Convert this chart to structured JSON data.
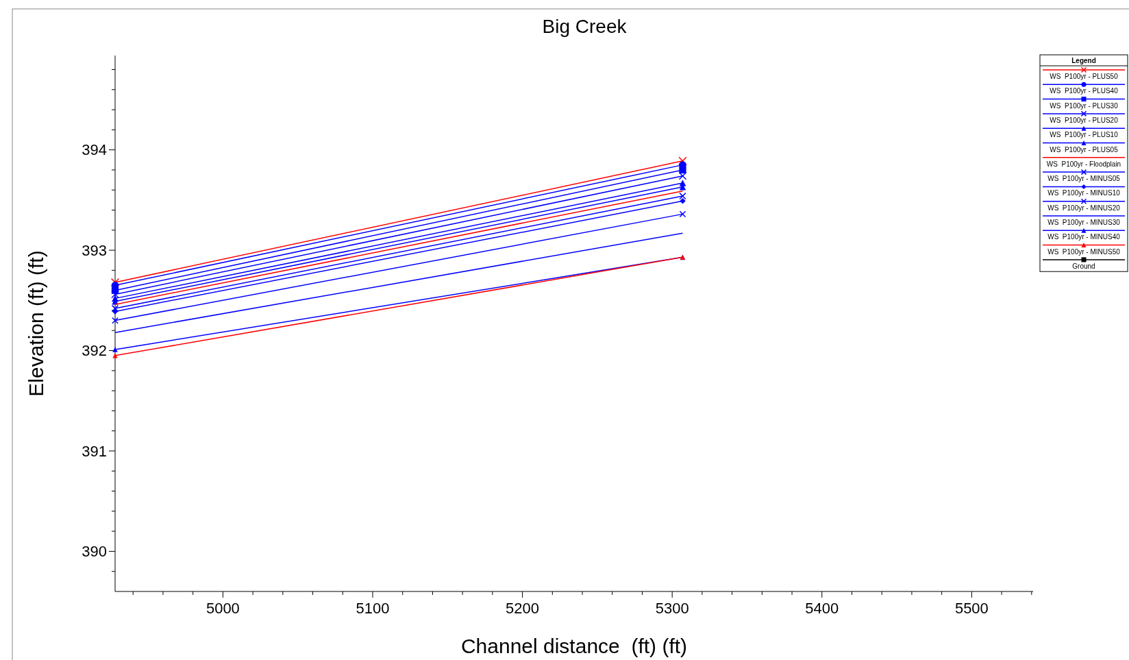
{
  "chart_data": {
    "type": "line",
    "title": "Big Creek",
    "xlabel": "Channel distance  (ft) (ft)",
    "ylabel": "Elevation (ft) (ft)",
    "legend_title": "Legend",
    "legend": "top right",
    "grid": false,
    "x": [
      4928,
      5307
    ],
    "xlim": [
      4928,
      5541
    ],
    "xticks": [
      {
        "value": 4940,
        "label": null
      },
      {
        "value": 4960,
        "label": null
      },
      {
        "value": 4980,
        "label": null
      },
      5000,
      {
        "value": 5020,
        "label": null
      },
      {
        "value": 5040,
        "label": null
      },
      {
        "value": 5060,
        "label": null
      },
      {
        "value": 5080,
        "label": null
      },
      5100,
      {
        "value": 5120,
        "label": null
      },
      {
        "value": 5140,
        "label": null
      },
      {
        "value": 5160,
        "label": null
      },
      {
        "value": 5180,
        "label": null
      },
      5200,
      {
        "value": 5220,
        "label": null
      },
      {
        "value": 5240,
        "label": null
      },
      {
        "value": 5260,
        "label": null
      },
      {
        "value": 5280,
        "label": null
      },
      5300,
      {
        "value": 5320,
        "label": null
      },
      {
        "value": 5340,
        "label": null
      },
      {
        "value": 5360,
        "label": null
      },
      {
        "value": 5380,
        "label": null
      },
      5400,
      {
        "value": 5420,
        "label": null
      },
      {
        "value": 5440,
        "label": null
      },
      {
        "value": 5460,
        "label": null
      },
      {
        "value": 5480,
        "label": null
      },
      5500,
      {
        "value": 5520,
        "label": null
      },
      {
        "value": 5540,
        "label": null
      }
    ],
    "ylim": [
      389.6,
      394.94
    ],
    "yticks": [
      {
        "value": 389.8,
        "label": null
      },
      390,
      {
        "value": 390.2,
        "label": null
      },
      {
        "value": 390.4,
        "label": null
      },
      {
        "value": 390.6,
        "label": null
      },
      {
        "value": 390.8,
        "label": null
      },
      391,
      {
        "value": 391.2,
        "label": null
      },
      {
        "value": 391.4,
        "label": null
      },
      {
        "value": 391.6,
        "label": null
      },
      {
        "value": 391.8,
        "label": null
      },
      392,
      {
        "value": 392.2,
        "label": null
      },
      {
        "value": 392.4,
        "label": null
      },
      {
        "value": 392.6,
        "label": null
      },
      {
        "value": 392.8,
        "label": null
      },
      393,
      {
        "value": 393.2,
        "label": null
      },
      {
        "value": 393.4,
        "label": null
      },
      {
        "value": 393.6,
        "label": null
      },
      {
        "value": 393.8,
        "label": null
      },
      394,
      {
        "value": 394.2,
        "label": null
      },
      {
        "value": 394.4,
        "label": null
      },
      {
        "value": 394.6,
        "label": null
      },
      {
        "value": 394.8,
        "label": null
      }
    ],
    "series": [
      {
        "name": "WS  P100yr - PLUS50",
        "color": "#ff0000",
        "marker": "cross",
        "values": [
          392.68,
          393.89
        ]
      },
      {
        "name": "WS  P100yr - PLUS40",
        "color": "#0000ff",
        "marker": "circle",
        "values": [
          392.65,
          393.85
        ]
      },
      {
        "name": "WS  P100yr - PLUS30",
        "color": "#0000ff",
        "marker": "square",
        "values": [
          392.6,
          393.8
        ]
      },
      {
        "name": "WS  P100yr - PLUS20",
        "color": "#0000ff",
        "marker": "cross",
        "values": [
          392.56,
          393.74
        ]
      },
      {
        "name": "WS  P100yr - PLUS10",
        "color": "#0000ff",
        "marker": "triangle",
        "values": [
          392.52,
          393.67
        ]
      },
      {
        "name": "WS  P100yr - PLUS05",
        "color": "#0000ff",
        "marker": "triangle",
        "values": [
          392.49,
          393.63
        ]
      },
      {
        "name": "WS  P100yr - Floodplain",
        "color": "#ff0000",
        "marker": "none",
        "values": [
          392.46,
          393.59
        ]
      },
      {
        "name": "WS  P100yr - MINUS05",
        "color": "#0000ff",
        "marker": "cross",
        "values": [
          392.42,
          393.54
        ]
      },
      {
        "name": "WS  P100yr - MINUS10",
        "color": "#0000ff",
        "marker": "diamond",
        "values": [
          392.39,
          393.49
        ]
      },
      {
        "name": "WS  P100yr - MINUS20",
        "color": "#0000ff",
        "marker": "cross",
        "values": [
          392.3,
          393.36
        ]
      },
      {
        "name": "WS  P100yr - MINUS30",
        "color": "#0000ff",
        "marker": "none",
        "values": [
          392.18,
          393.17
        ]
      },
      {
        "name": "WS  P100yr - MINUS40",
        "color": "#0000ff",
        "marker": "triangle",
        "values": [
          392.01,
          392.93
        ]
      },
      {
        "name": "WS  P100yr - MINUS50",
        "color": "#ff0000",
        "marker": "triangle",
        "values": [
          391.95,
          392.93
        ]
      },
      {
        "name": "Ground",
        "color": "#000000",
        "marker": "square",
        "values": [
          null,
          null
        ]
      }
    ]
  }
}
